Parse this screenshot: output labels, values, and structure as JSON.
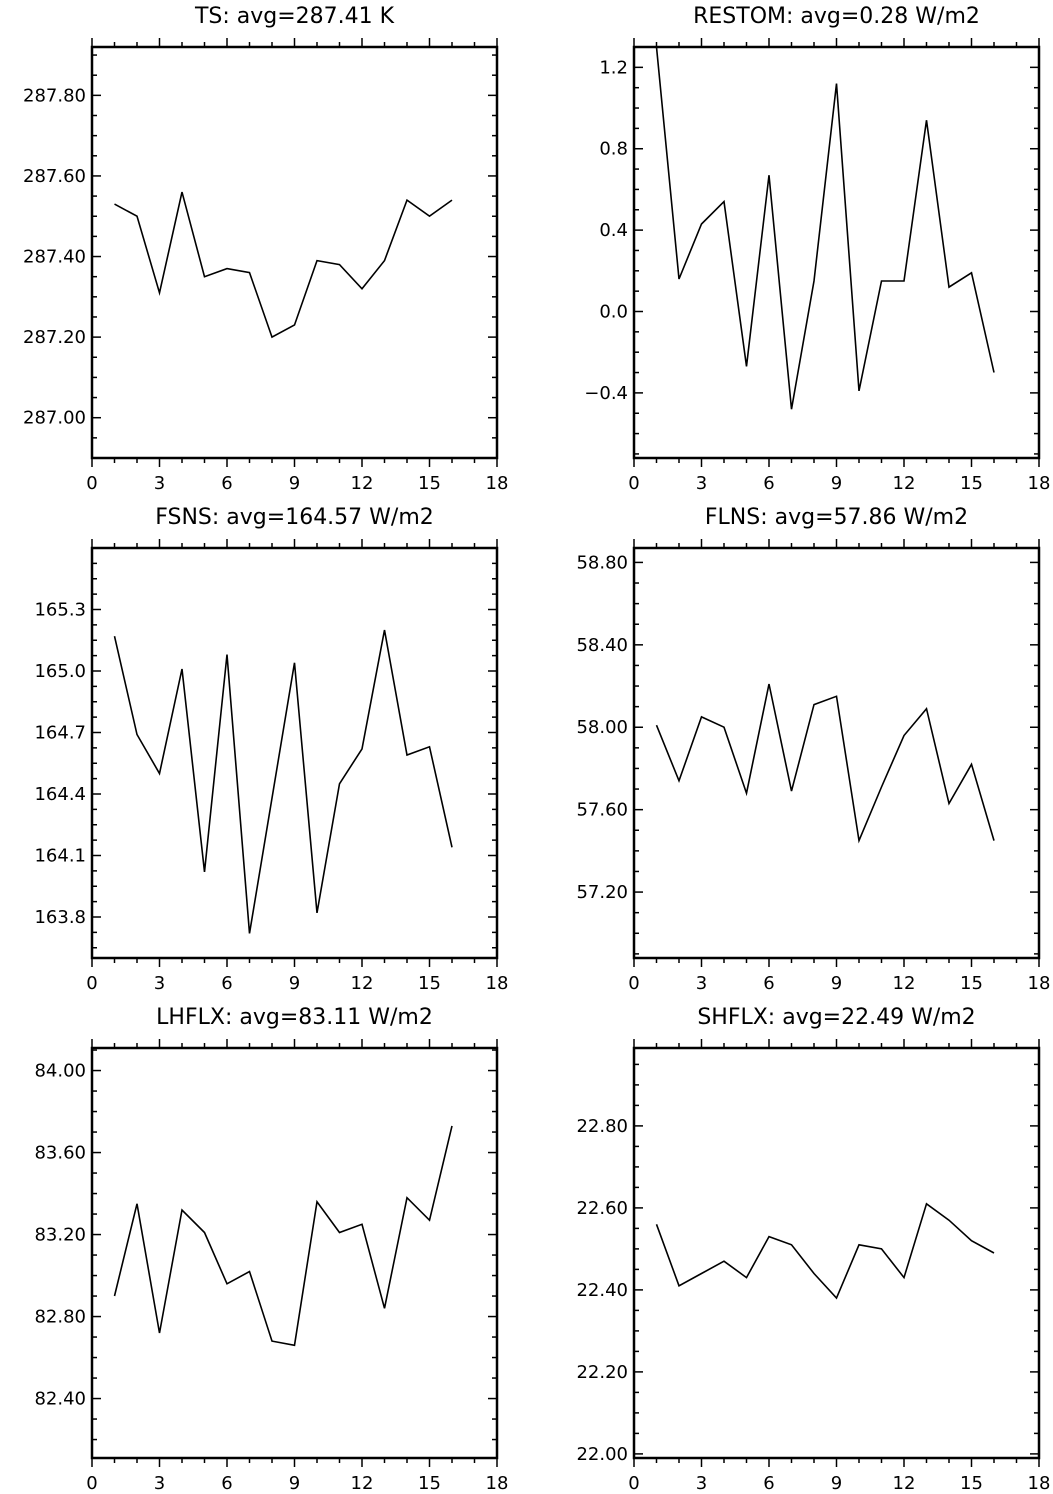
{
  "chart_data": [
    {
      "type": "line",
      "title": "TS: avg=287.41 K",
      "x": [
        1,
        2,
        3,
        4,
        5,
        6,
        7,
        8,
        9,
        10,
        11,
        12,
        13,
        14,
        15,
        16
      ],
      "series": [
        {
          "values": [
            287.53,
            287.5,
            287.31,
            287.56,
            287.35,
            287.37,
            287.36,
            287.2,
            287.23,
            287.39,
            287.38,
            287.32,
            287.39,
            287.54,
            287.5,
            287.54
          ]
        }
      ],
      "xlim": [
        0,
        18
      ],
      "ylim": [
        286.9,
        287.92
      ],
      "xticks": [
        0,
        3,
        6,
        9,
        12,
        15,
        18
      ],
      "xtick_labels": [
        "0",
        "3",
        "6",
        "9",
        "12",
        "15",
        "18"
      ],
      "yticks": [
        287.0,
        287.2,
        287.4,
        287.6,
        287.8
      ],
      "ytick_labels": [
        "287.00",
        "287.20",
        "287.40",
        "287.60",
        "287.80"
      ]
    },
    {
      "type": "line",
      "title": "RESTOM: avg=0.28 W/m2",
      "x": [
        1,
        2,
        3,
        4,
        5,
        6,
        7,
        8,
        9,
        10,
        11,
        12,
        13,
        14,
        15,
        16
      ],
      "series": [
        {
          "values": [
            1.3,
            0.16,
            0.43,
            0.54,
            -0.27,
            0.67,
            -0.48,
            0.15,
            1.12,
            -0.39,
            0.15,
            0.15,
            0.94,
            0.12,
            0.19,
            -0.3
          ]
        }
      ],
      "xlim": [
        0,
        18
      ],
      "ylim": [
        -0.72,
        1.3
      ],
      "xticks": [
        0,
        3,
        6,
        9,
        12,
        15,
        18
      ],
      "xtick_labels": [
        "0",
        "3",
        "6",
        "9",
        "12",
        "15",
        "18"
      ],
      "yticks": [
        -0.4,
        0.0,
        0.4,
        0.8,
        1.2
      ],
      "ytick_labels": [
        "−0.4",
        "0.0",
        "0.4",
        "0.8",
        "1.2"
      ]
    },
    {
      "type": "line",
      "title": "FSNS: avg=164.57 W/m2",
      "x": [
        1,
        2,
        3,
        4,
        5,
        6,
        7,
        8,
        9,
        10,
        11,
        12,
        13,
        14,
        15,
        16
      ],
      "series": [
        {
          "values": [
            165.17,
            164.69,
            164.5,
            165.01,
            164.02,
            165.08,
            163.72,
            164.38,
            165.04,
            163.82,
            164.45,
            164.62,
            165.2,
            164.59,
            164.63,
            164.14
          ]
        }
      ],
      "xlim": [
        0,
        18
      ],
      "ylim": [
        163.6,
        165.6
      ],
      "xticks": [
        0,
        3,
        6,
        9,
        12,
        15,
        18
      ],
      "xtick_labels": [
        "0",
        "3",
        "6",
        "9",
        "12",
        "15",
        "18"
      ],
      "yticks": [
        163.8,
        164.1,
        164.4,
        164.7,
        165.0,
        165.3
      ],
      "ytick_labels": [
        "163.8",
        "164.1",
        "164.4",
        "164.7",
        "165.0",
        "165.3"
      ]
    },
    {
      "type": "line",
      "title": "FLNS: avg=57.86 W/m2",
      "x": [
        1,
        2,
        3,
        4,
        5,
        6,
        7,
        8,
        9,
        10,
        11,
        12,
        13,
        14,
        15,
        16
      ],
      "series": [
        {
          "values": [
            58.01,
            57.74,
            58.05,
            58.0,
            57.68,
            58.21,
            57.69,
            58.11,
            58.15,
            57.45,
            57.71,
            57.96,
            58.09,
            57.63,
            57.82,
            57.45
          ]
        }
      ],
      "xlim": [
        0,
        18
      ],
      "ylim": [
        56.88,
        58.87
      ],
      "xticks": [
        0,
        3,
        6,
        9,
        12,
        15,
        18
      ],
      "xtick_labels": [
        "0",
        "3",
        "6",
        "9",
        "12",
        "15",
        "18"
      ],
      "yticks": [
        57.2,
        57.6,
        58.0,
        58.4,
        58.8
      ],
      "ytick_labels": [
        "57.20",
        "57.60",
        "58.00",
        "58.40",
        "58.80"
      ]
    },
    {
      "type": "line",
      "title": "LHFLX: avg=83.11 W/m2",
      "x": [
        1,
        2,
        3,
        4,
        5,
        6,
        7,
        8,
        9,
        10,
        11,
        12,
        13,
        14,
        15,
        16
      ],
      "series": [
        {
          "values": [
            82.9,
            83.35,
            82.72,
            83.32,
            83.21,
            82.96,
            83.02,
            82.68,
            82.66,
            83.36,
            83.21,
            83.25,
            82.84,
            83.38,
            83.27,
            83.73
          ]
        }
      ],
      "xlim": [
        0,
        18
      ],
      "ylim": [
        82.11,
        84.11
      ],
      "xticks": [
        0,
        3,
        6,
        9,
        12,
        15,
        18
      ],
      "xtick_labels": [
        "0",
        "3",
        "6",
        "9",
        "12",
        "15",
        "18"
      ],
      "yticks": [
        82.4,
        82.8,
        83.2,
        83.6,
        84.0
      ],
      "ytick_labels": [
        "82.40",
        "82.80",
        "83.20",
        "83.60",
        "84.00"
      ]
    },
    {
      "type": "line",
      "title": "SHFLX: avg=22.49 W/m2",
      "x": [
        1,
        2,
        3,
        4,
        5,
        6,
        7,
        8,
        9,
        10,
        11,
        12,
        13,
        14,
        15,
        16
      ],
      "series": [
        {
          "values": [
            22.56,
            22.41,
            22.44,
            22.47,
            22.43,
            22.53,
            22.51,
            22.44,
            22.38,
            22.51,
            22.5,
            22.43,
            22.61,
            22.57,
            22.52,
            22.49
          ]
        }
      ],
      "xlim": [
        0,
        18
      ],
      "ylim": [
        21.99,
        22.99
      ],
      "xticks": [
        0,
        3,
        6,
        9,
        12,
        15,
        18
      ],
      "xtick_labels": [
        "0",
        "3",
        "6",
        "9",
        "12",
        "15",
        "18"
      ],
      "yticks": [
        22.0,
        22.2,
        22.4,
        22.6,
        22.8
      ],
      "ytick_labels": [
        "22.00",
        "22.20",
        "22.40",
        "22.60",
        "22.80"
      ]
    }
  ]
}
